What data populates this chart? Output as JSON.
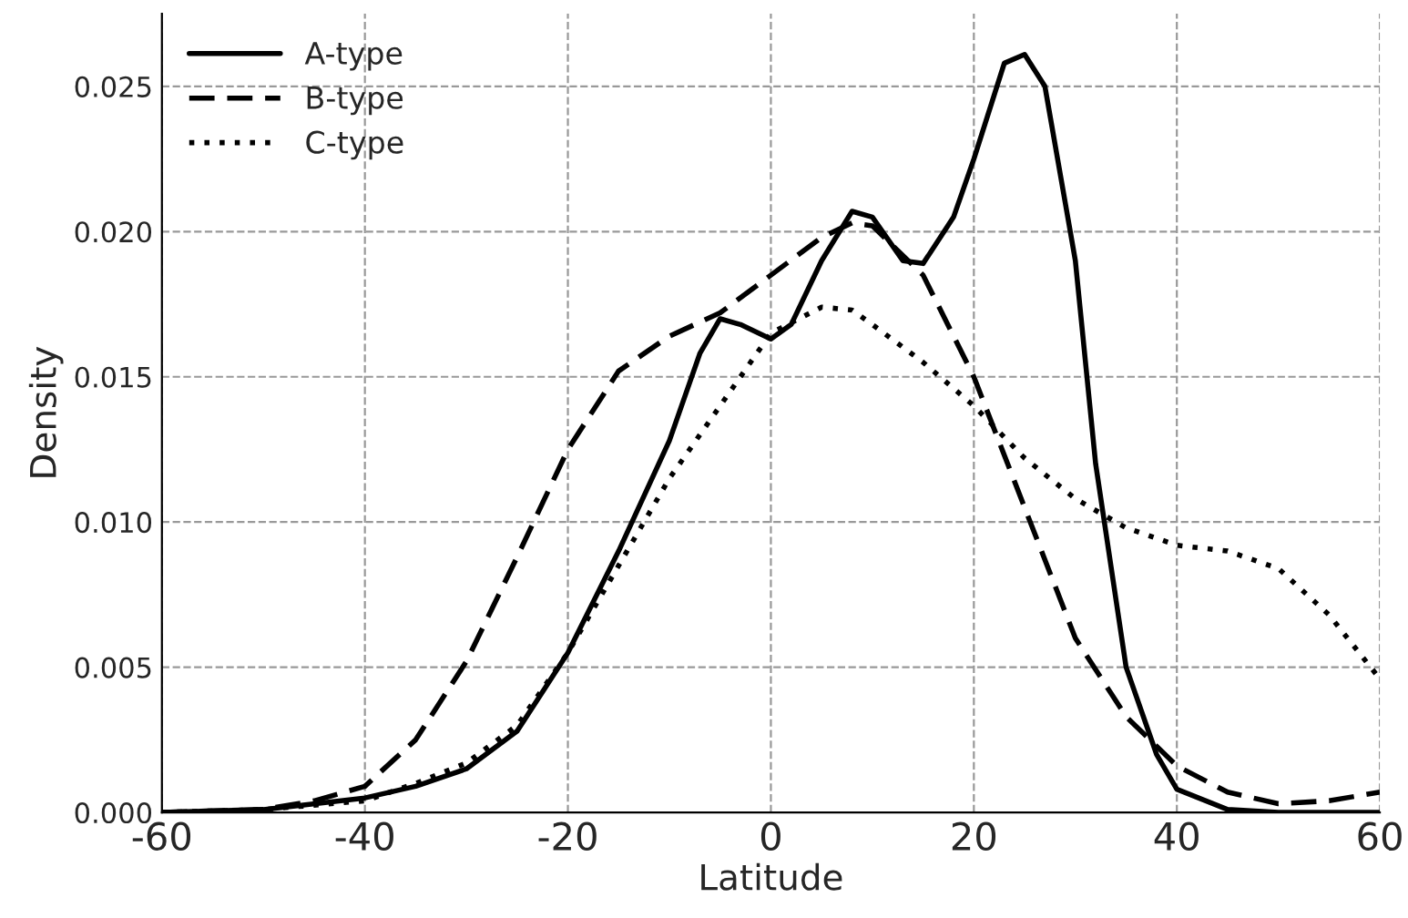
{
  "chart_data": {
    "type": "line",
    "xlabel": "Latitude",
    "ylabel": "Density",
    "xlim": [
      -60,
      60
    ],
    "xticks": [
      -60,
      -40,
      -20,
      0,
      20,
      40,
      60
    ],
    "ylim": [
      0,
      0.0275
    ],
    "yticks": [
      {
        "value": 0,
        "label": "0.000"
      },
      {
        "value": 0.005,
        "label": "0.005"
      },
      {
        "value": 0.01,
        "label": "0.010"
      },
      {
        "value": 0.015,
        "label": "0.015"
      },
      {
        "value": 0.02,
        "label": "0.020"
      },
      {
        "value": 0.025,
        "label": "0.025"
      }
    ],
    "grid": true,
    "legend": "top left",
    "marker": "none",
    "series": [
      {
        "name": "A-type",
        "color": "#000000",
        "line_style": "solid",
        "x": [
          -60,
          -50,
          -40,
          -35,
          -30,
          -25,
          -20,
          -15,
          -10,
          -7,
          -5,
          -3,
          0,
          2,
          5,
          8,
          10,
          13,
          15,
          18,
          20,
          23,
          25,
          27,
          30,
          32,
          35,
          38,
          40,
          45,
          50,
          60
        ],
        "values": [
          0,
          0.0001,
          0.0005,
          0.0009,
          0.0015,
          0.0028,
          0.0055,
          0.009,
          0.0128,
          0.0158,
          0.017,
          0.0168,
          0.0163,
          0.0168,
          0.019,
          0.0207,
          0.0205,
          0.019,
          0.0189,
          0.0205,
          0.0225,
          0.0258,
          0.0261,
          0.025,
          0.019,
          0.012,
          0.005,
          0.002,
          0.0008,
          0.0001,
          0,
          0
        ]
      },
      {
        "name": "B-type",
        "color": "#000000",
        "line_style": "dashed",
        "x": [
          -60,
          -50,
          -45,
          -40,
          -35,
          -30,
          -25,
          -20,
          -15,
          -10,
          -5,
          0,
          5,
          8,
          10,
          15,
          20,
          25,
          30,
          35,
          40,
          45,
          50,
          55,
          60
        ],
        "values": [
          0,
          0.0001,
          0.0004,
          0.0009,
          0.0025,
          0.0052,
          0.0088,
          0.0125,
          0.0152,
          0.0164,
          0.0172,
          0.0185,
          0.0198,
          0.0203,
          0.0202,
          0.0185,
          0.015,
          0.0105,
          0.006,
          0.0033,
          0.0016,
          0.0007,
          0.0003,
          0.0004,
          0.0007
        ]
      },
      {
        "name": "C-type",
        "color": "#000000",
        "line_style": "dotted",
        "x": [
          -60,
          -50,
          -40,
          -35,
          -30,
          -25,
          -20,
          -15,
          -10,
          -5,
          0,
          5,
          8,
          10,
          15,
          20,
          25,
          30,
          35,
          40,
          45,
          50,
          55,
          60
        ],
        "values": [
          0,
          0.0001,
          0.0004,
          0.001,
          0.0017,
          0.003,
          0.0055,
          0.0085,
          0.0115,
          0.014,
          0.0165,
          0.0174,
          0.0173,
          0.0168,
          0.0155,
          0.014,
          0.0122,
          0.0108,
          0.0098,
          0.0092,
          0.009,
          0.0084,
          0.0068,
          0.0046
        ]
      }
    ]
  }
}
